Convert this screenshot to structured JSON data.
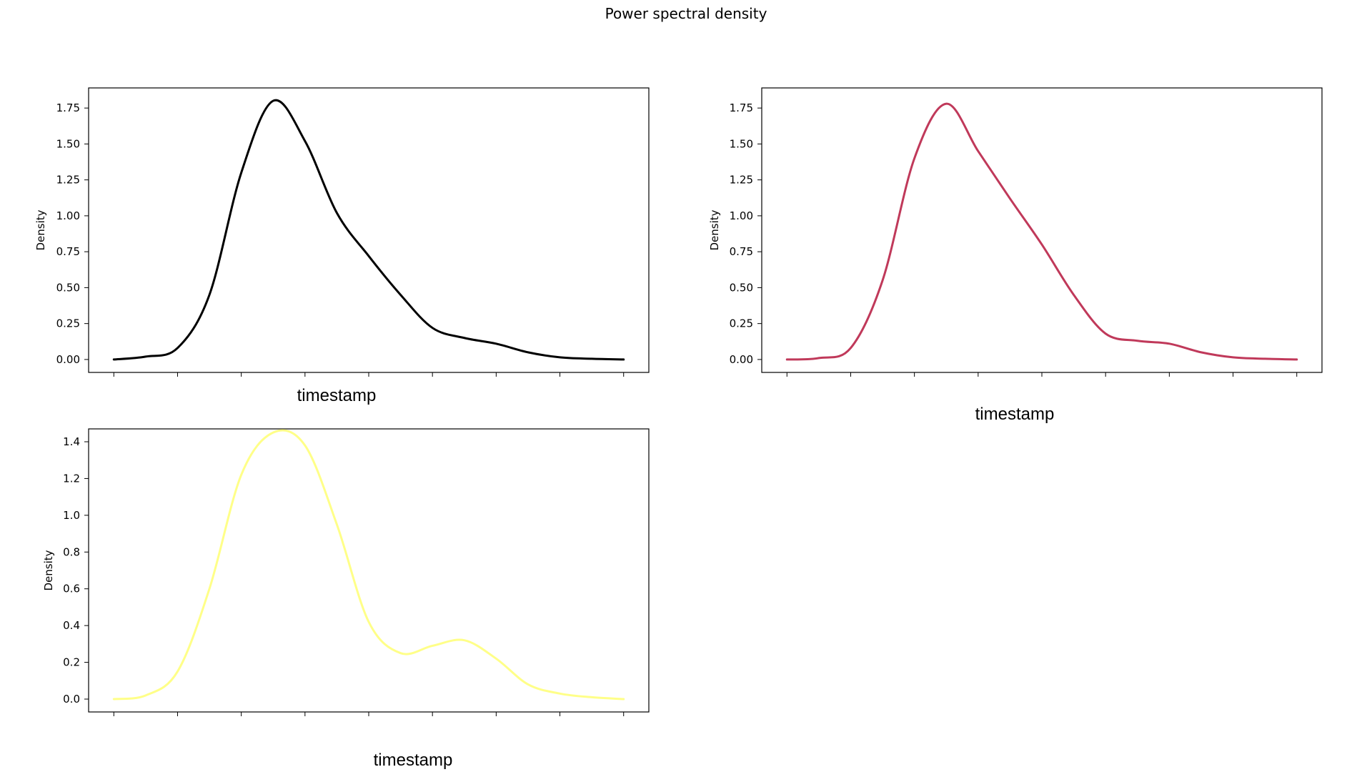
{
  "figure": {
    "title": "Power spectral density"
  },
  "chart_data": [
    {
      "type": "line",
      "xlabel": "timestamp",
      "ylabel": "Density",
      "ylim": [
        -0.09,
        1.89
      ],
      "yticks": [
        0.0,
        0.25,
        0.5,
        0.75,
        1.0,
        1.25,
        1.5,
        1.75
      ],
      "ytick_labels": [
        "0.00",
        "0.25",
        "0.50",
        "0.75",
        "1.00",
        "1.25",
        "1.50",
        "1.75"
      ],
      "xtick_count": 9,
      "xtick_labels": [],
      "color": "#000000",
      "series": [
        {
          "x": [
            0,
            0.5,
            1.0,
            1.5,
            2.0,
            2.5,
            3.0,
            3.5,
            4.0,
            4.5,
            5.0,
            5.5,
            6.0,
            6.5,
            7.0,
            7.5,
            8.0
          ],
          "y": [
            0.0,
            0.02,
            0.08,
            0.45,
            1.3,
            1.8,
            1.52,
            1.02,
            0.72,
            0.45,
            0.22,
            0.15,
            0.11,
            0.05,
            0.015,
            0.005,
            0.0
          ]
        }
      ]
    },
    {
      "type": "line",
      "xlabel": "timestamp",
      "ylabel": "Density",
      "ylim": [
        -0.09,
        1.89
      ],
      "yticks": [
        0.0,
        0.25,
        0.5,
        0.75,
        1.0,
        1.25,
        1.5,
        1.75
      ],
      "ytick_labels": [
        "0.00",
        "0.25",
        "0.50",
        "0.75",
        "1.00",
        "1.25",
        "1.50",
        "1.75"
      ],
      "xtick_count": 9,
      "xtick_labels": [],
      "color": "#c0395a",
      "series": [
        {
          "x": [
            0,
            0.5,
            1.0,
            1.5,
            2.0,
            2.5,
            3.0,
            3.5,
            4.0,
            4.5,
            5.0,
            5.5,
            6.0,
            6.5,
            7.0,
            7.5,
            8.0
          ],
          "y": [
            0.0,
            0.01,
            0.08,
            0.55,
            1.4,
            1.78,
            1.45,
            1.12,
            0.8,
            0.45,
            0.18,
            0.13,
            0.11,
            0.05,
            0.015,
            0.005,
            0.0
          ]
        }
      ]
    },
    {
      "type": "line",
      "xlabel": "timestamp",
      "ylabel": "Density",
      "ylim": [
        -0.07,
        1.47
      ],
      "yticks": [
        0.0,
        0.2,
        0.4,
        0.6,
        0.8,
        1.0,
        1.2,
        1.4
      ],
      "ytick_labels": [
        "0.0",
        "0.2",
        "0.4",
        "0.6",
        "0.8",
        "1.0",
        "1.2",
        "1.4"
      ],
      "xtick_count": 9,
      "xtick_labels": [],
      "color": "#ffff88",
      "series": [
        {
          "x": [
            0,
            0.5,
            1.0,
            1.5,
            2.0,
            2.5,
            3.0,
            3.5,
            4.0,
            4.5,
            5.0,
            5.5,
            6.0,
            6.5,
            7.0,
            7.5,
            8.0
          ],
          "y": [
            0.0,
            0.02,
            0.15,
            0.6,
            1.22,
            1.45,
            1.38,
            0.95,
            0.42,
            0.25,
            0.29,
            0.32,
            0.22,
            0.08,
            0.03,
            0.01,
            0.0
          ]
        }
      ]
    }
  ]
}
